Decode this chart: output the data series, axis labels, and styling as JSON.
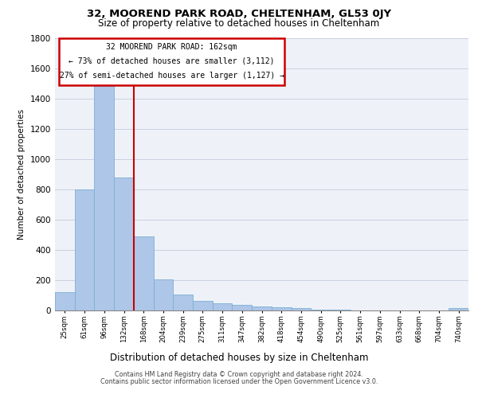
{
  "title1": "32, MOOREND PARK ROAD, CHELTENHAM, GL53 0JY",
  "title2": "Size of property relative to detached houses in Cheltenham",
  "xlabel": "Distribution of detached houses by size in Cheltenham",
  "ylabel": "Number of detached properties",
  "footer1": "Contains HM Land Registry data © Crown copyright and database right 2024.",
  "footer2": "Contains public sector information licensed under the Open Government Licence v3.0.",
  "annotation_line1": "32 MOOREND PARK ROAD: 162sqm",
  "annotation_line2": "← 73% of detached houses are smaller (3,112)",
  "annotation_line3": "27% of semi-detached houses are larger (1,127) →",
  "bar_labels": [
    "25sqm",
    "61sqm",
    "96sqm",
    "132sqm",
    "168sqm",
    "204sqm",
    "239sqm",
    "275sqm",
    "311sqm",
    "347sqm",
    "382sqm",
    "418sqm",
    "454sqm",
    "490sqm",
    "525sqm",
    "561sqm",
    "597sqm",
    "633sqm",
    "668sqm",
    "704sqm",
    "740sqm"
  ],
  "bar_values": [
    120,
    800,
    1480,
    880,
    490,
    205,
    105,
    65,
    45,
    35,
    25,
    22,
    18,
    5,
    3,
    2,
    2,
    1,
    1,
    1,
    14
  ],
  "bar_color": "#aec6e8",
  "bar_edge_color": "#7bafd4",
  "vline_color": "#cc0000",
  "vline_index": 3.5,
  "annotation_box_color": "#cc0000",
  "ylim": [
    0,
    1800
  ],
  "yticks": [
    0,
    200,
    400,
    600,
    800,
    1000,
    1200,
    1400,
    1600,
    1800
  ],
  "bg_color": "#eef2f8",
  "grid_color": "#c8cfe0"
}
